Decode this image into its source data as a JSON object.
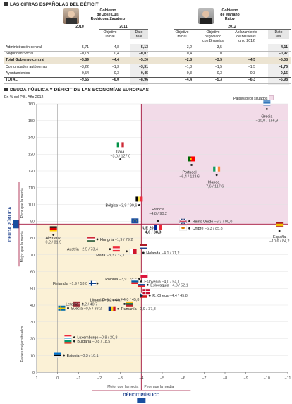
{
  "table": {
    "title": "LAS CIFRAS ESPAÑOLAS DEL DÉFICIT",
    "gov1": {
      "name": "Gobierno de José Luis Rodríguez Zapatero",
      "line1": "Gobierno",
      "line2": "de José Luis",
      "line3": "Rodríguez Zapatero",
      "year_prev": "2010",
      "year": "2011"
    },
    "gov2": {
      "name": "Gobierno de Mariano Rajoy",
      "line1": "Gobierno",
      "line2": "de Mariano",
      "line3": "Rajoy",
      "year": "2012"
    },
    "cols": {
      "c1": "2010",
      "c2a": "Objetivo",
      "c2b": "inicial",
      "c3a": "Dato",
      "c3b": "real",
      "c4a": "Objetivo",
      "c4b": "inicial",
      "c5a": "Objetivo",
      "c5b": "negociado",
      "c5c": "con Bruselas",
      "c6a": "Aplazamiento",
      "c6b": "de Bruselas",
      "c6c": "junio 2012",
      "c7a": "Dato",
      "c7b": "real"
    },
    "rows": [
      {
        "label": "Administración central",
        "v": [
          "−5,71",
          "−4,8",
          "−5,13",
          "−3,2",
          "−3,5",
          "",
          "−4,11"
        ]
      },
      {
        "label": "Seguridad Social",
        "v": [
          "−0,18",
          "0,4",
          "−0,07",
          "0,4",
          "0",
          "",
          "−0,97"
        ]
      },
      {
        "label": "Total Gobierno central",
        "v": [
          "−5,89",
          "−4,4",
          "−5,20",
          "−2,8",
          "−3,5",
          "−4,5",
          "−5,08"
        ]
      },
      {
        "label": "Comunidades autónomas",
        "v": [
          "−3,22",
          "−1,3",
          "−3,31",
          "−1,3",
          "−1,5",
          "−1,5",
          "−1,76"
        ]
      },
      {
        "label": "Ayuntamientos",
        "v": [
          "−0,54",
          "−0,3",
          "−0,45",
          "−0,3",
          "−0,3",
          "−0,3",
          "−0,15"
        ]
      },
      {
        "label": "TOTAL",
        "v": [
          "−9,65",
          "−6,0",
          "−8,96",
          "−4,4",
          "−5,3",
          "−6,3",
          "−6,98"
        ]
      }
    ]
  },
  "chart": {
    "title": "DEUDA PÚBLICA Y DÉFICIT DE LAS ECONOMÍAS EUROPEAS",
    "subtitle": "En % del PIB. Año 2012",
    "legend_worse": "Países peor situados",
    "legend_better": "Países mejor situados",
    "y_axis_title": "DEUDA PÚBLICA",
    "y_worse": "Peor que la media",
    "y_better": "Mejor que la media",
    "x_axis_title": "DÉFICIT PÚBLICO",
    "x_better": "Mejor que la media",
    "x_worse": "Peor que la media",
    "ue_label": "UE 2012",
    "ue_value": "−4,0 / 88,3"
  },
  "chart_data": {
    "type": "scatter",
    "title": "DEUDA PÚBLICA Y DÉFICIT DE LAS ECONOMÍAS EUROPEAS",
    "subtitle": "En % del PIB. Año 2012",
    "xlabel": "DÉFICIT PÚBLICO",
    "ylabel": "DEUDA PÚBLICA",
    "xlim": [
      1,
      -11
    ],
    "ylim": [
      0,
      160
    ],
    "x_ticks": [
      1,
      0,
      -1,
      -2,
      -3,
      -4,
      -5,
      -6,
      -7,
      -8,
      -9,
      -10,
      -11
    ],
    "y_ticks": [
      0,
      10,
      20,
      30,
      40,
      50,
      60,
      70,
      80,
      90,
      100,
      110,
      120,
      130,
      140,
      150,
      160
    ],
    "reference": {
      "name": "UE 2012",
      "x": -4.0,
      "y": 88.3
    },
    "points": [
      {
        "name": "Grecia",
        "x": -10.0,
        "y": 156.9,
        "label": "−10,0 / 156,9",
        "flag": "greece"
      },
      {
        "name": "Italia",
        "x": -3.0,
        "y": 127.0,
        "label": "−3,0 / 127,0",
        "flag": "italy"
      },
      {
        "name": "Portugal",
        "x": -6.4,
        "y": 123.6,
        "label": "−6,4 / 123,6",
        "flag": "portugal"
      },
      {
        "name": "Irlanda",
        "x": -7.6,
        "y": 117.6,
        "label": "−7,6 / 117,6",
        "flag": "ireland"
      },
      {
        "name": "Bélgica",
        "x": -3.9,
        "y": 99.6,
        "label": "−3,9 / 99,6",
        "flag": "belgium"
      },
      {
        "name": "Francia",
        "x": -4.8,
        "y": 90.2,
        "label": "−4,8 / 90,2",
        "flag": "france"
      },
      {
        "name": "Reino Unido",
        "x": -6.3,
        "y": 90.0,
        "label": "−6,3 / 90,0",
        "flag": "uk"
      },
      {
        "name": "Chipre",
        "x": -6.3,
        "y": 85.8,
        "label": "−6,3 / 85,8",
        "flag": "cyprus"
      },
      {
        "name": "España",
        "x": -10.6,
        "y": 84.2,
        "label": "−10,6 / 84,2",
        "flag": "spain"
      },
      {
        "name": "Alemania",
        "x": 0.2,
        "y": 81.9,
        "label": "0,2 / 81,9",
        "flag": "germany"
      },
      {
        "name": "Hungría",
        "x": -1.9,
        "y": 79.2,
        "label": "−1,9 / 79,2",
        "flag": "hungary"
      },
      {
        "name": "Austria",
        "x": -2.5,
        "y": 73.4,
        "label": "−2,5 / 73,4",
        "flag": "austria"
      },
      {
        "name": "Holanda",
        "x": -4.1,
        "y": 71.2,
        "label": "−4,1 / 71,2",
        "flag": "netherlands"
      },
      {
        "name": "Malta",
        "x": -3.3,
        "y": 72.1,
        "label": "−3,3 / 72,1",
        "flag": "malta"
      },
      {
        "name": "Polonia",
        "x": -3.9,
        "y": 55.6,
        "label": "−3,9 / 55,6",
        "flag": "poland"
      },
      {
        "name": "Lituania",
        "x": -3.2,
        "y": 40.7,
        "label": "−3,2 / 40,7",
        "flag": "lithuania"
      },
      {
        "name": "Eslovenia",
        "x": -4.0,
        "y": 54.1,
        "label": "−4,0 / 54,1",
        "flag": "slovenia"
      },
      {
        "name": "Finlandia",
        "x": -1.9,
        "y": 53.0,
        "label": "−1,9 / 53,0",
        "flag": "finland"
      },
      {
        "name": "Eslovaquia",
        "x": -4.3,
        "y": 52.1,
        "label": "−4,3 / 52,1",
        "flag": "slovakia"
      },
      {
        "name": "Letonia",
        "x": -1.2,
        "y": 40.7,
        "label": "−1,2 / 40,7",
        "flag": "latvia"
      },
      {
        "name": "R. Checa",
        "x": -4.4,
        "y": 45.8,
        "label": "−4,4 / 45,8",
        "flag": "czech"
      },
      {
        "name": "Dinamarca",
        "x": -4.0,
        "y": 45.8,
        "label": "−4,0 / 45,8",
        "flag": "denmark"
      },
      {
        "name": "Suecia",
        "x": -0.5,
        "y": 38.2,
        "label": "−0,5 / 38,2",
        "flag": "sweden"
      },
      {
        "name": "Rumanía",
        "x": -2.9,
        "y": 37.8,
        "label": "−2,9 / 37,8",
        "flag": "romania"
      },
      {
        "name": "Luxemburgo",
        "x": -0.8,
        "y": 20.8,
        "label": "−0,8 / 20,8",
        "flag": "luxembourg"
      },
      {
        "name": "Bulgaria",
        "x": -0.8,
        "y": 18.5,
        "label": "−0,8 / 18,5",
        "flag": "bulgaria"
      },
      {
        "name": "Estonia",
        "x": -0.3,
        "y": 10.1,
        "label": "−0,3 / 10,1",
        "flag": "estonia"
      }
    ]
  },
  "colors": {
    "worse": "#f2dbe8",
    "better": "#fbf1d6",
    "ue_line": "#a3123a",
    "axis": "#666"
  }
}
